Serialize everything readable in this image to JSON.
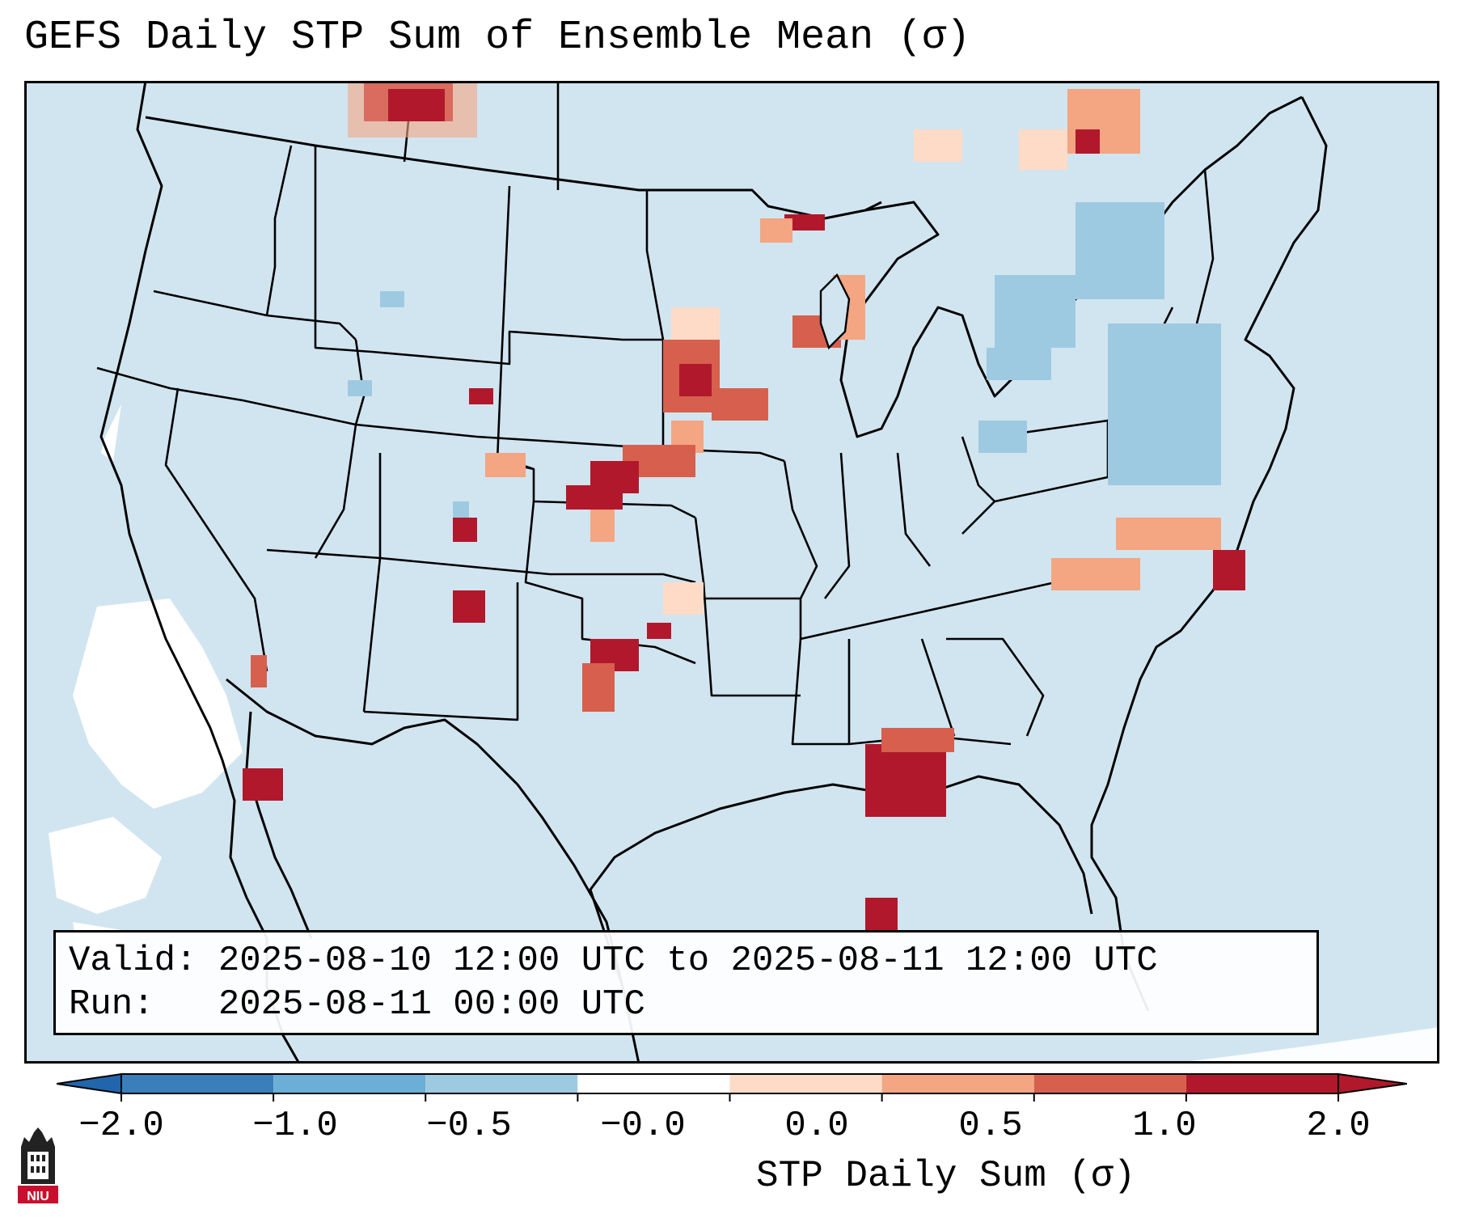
{
  "title": "GEFS Daily STP Sum of Ensemble Mean (σ)",
  "info": {
    "valid_label": "Valid:",
    "valid_value": "2025-08-10 12:00 UTC to 2025-08-11 12:00 UTC",
    "run_label": "Run:",
    "run_value": "2025-08-11 00:00 UTC"
  },
  "colorbar": {
    "label": "STP Daily Sum (σ)",
    "ticks": [
      "−2.0",
      "−1.0",
      "−0.5",
      "−0.0",
      "0.0",
      "0.5",
      "1.0",
      "2.0"
    ],
    "colors": [
      "#3a7ebc",
      "#6baed6",
      "#9ecae1",
      "#ffffff",
      "#fddbc7",
      "#f4a582",
      "#d6604d",
      "#b2182b"
    ]
  },
  "map": {
    "region": "Contiguous United States",
    "background_color": "#d1e5f0",
    "border_color": "#000000"
  },
  "logo": {
    "text": "NIU",
    "icon": "university-tower-icon"
  }
}
